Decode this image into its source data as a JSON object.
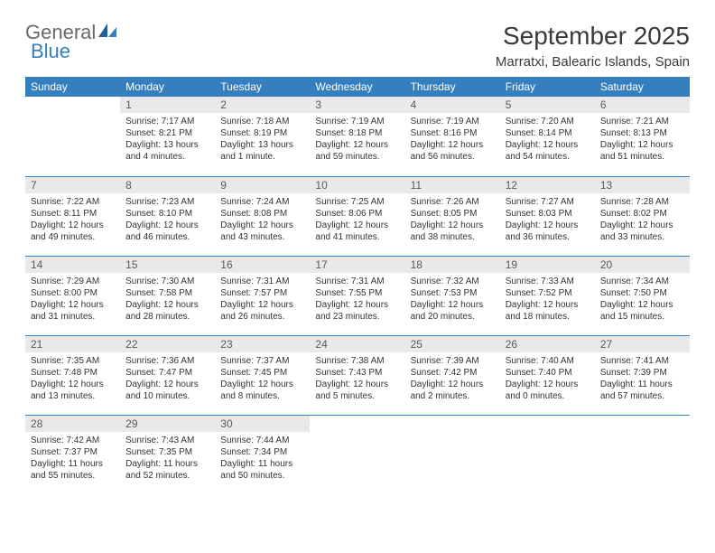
{
  "brand": {
    "part1": "General",
    "part2": "Blue"
  },
  "title": "September 2025",
  "subtitle": "Marratxi, Balearic Islands, Spain",
  "colors": {
    "header_bg": "#367fbf",
    "header_text": "#ffffff",
    "daynum_bg": "#e9e9e9",
    "border": "#367fbf",
    "logo_gray": "#6a6a6a",
    "logo_blue": "#367fbf"
  },
  "weekdays": [
    "Sunday",
    "Monday",
    "Tuesday",
    "Wednesday",
    "Thursday",
    "Friday",
    "Saturday"
  ],
  "weeks": [
    [
      {
        "n": "",
        "sr": "",
        "ss": "",
        "dl": ""
      },
      {
        "n": "1",
        "sr": "Sunrise: 7:17 AM",
        "ss": "Sunset: 8:21 PM",
        "dl": "Daylight: 13 hours and 4 minutes."
      },
      {
        "n": "2",
        "sr": "Sunrise: 7:18 AM",
        "ss": "Sunset: 8:19 PM",
        "dl": "Daylight: 13 hours and 1 minute."
      },
      {
        "n": "3",
        "sr": "Sunrise: 7:19 AM",
        "ss": "Sunset: 8:18 PM",
        "dl": "Daylight: 12 hours and 59 minutes."
      },
      {
        "n": "4",
        "sr": "Sunrise: 7:19 AM",
        "ss": "Sunset: 8:16 PM",
        "dl": "Daylight: 12 hours and 56 minutes."
      },
      {
        "n": "5",
        "sr": "Sunrise: 7:20 AM",
        "ss": "Sunset: 8:14 PM",
        "dl": "Daylight: 12 hours and 54 minutes."
      },
      {
        "n": "6",
        "sr": "Sunrise: 7:21 AM",
        "ss": "Sunset: 8:13 PM",
        "dl": "Daylight: 12 hours and 51 minutes."
      }
    ],
    [
      {
        "n": "7",
        "sr": "Sunrise: 7:22 AM",
        "ss": "Sunset: 8:11 PM",
        "dl": "Daylight: 12 hours and 49 minutes."
      },
      {
        "n": "8",
        "sr": "Sunrise: 7:23 AM",
        "ss": "Sunset: 8:10 PM",
        "dl": "Daylight: 12 hours and 46 minutes."
      },
      {
        "n": "9",
        "sr": "Sunrise: 7:24 AM",
        "ss": "Sunset: 8:08 PM",
        "dl": "Daylight: 12 hours and 43 minutes."
      },
      {
        "n": "10",
        "sr": "Sunrise: 7:25 AM",
        "ss": "Sunset: 8:06 PM",
        "dl": "Daylight: 12 hours and 41 minutes."
      },
      {
        "n": "11",
        "sr": "Sunrise: 7:26 AM",
        "ss": "Sunset: 8:05 PM",
        "dl": "Daylight: 12 hours and 38 minutes."
      },
      {
        "n": "12",
        "sr": "Sunrise: 7:27 AM",
        "ss": "Sunset: 8:03 PM",
        "dl": "Daylight: 12 hours and 36 minutes."
      },
      {
        "n": "13",
        "sr": "Sunrise: 7:28 AM",
        "ss": "Sunset: 8:02 PM",
        "dl": "Daylight: 12 hours and 33 minutes."
      }
    ],
    [
      {
        "n": "14",
        "sr": "Sunrise: 7:29 AM",
        "ss": "Sunset: 8:00 PM",
        "dl": "Daylight: 12 hours and 31 minutes."
      },
      {
        "n": "15",
        "sr": "Sunrise: 7:30 AM",
        "ss": "Sunset: 7:58 PM",
        "dl": "Daylight: 12 hours and 28 minutes."
      },
      {
        "n": "16",
        "sr": "Sunrise: 7:31 AM",
        "ss": "Sunset: 7:57 PM",
        "dl": "Daylight: 12 hours and 26 minutes."
      },
      {
        "n": "17",
        "sr": "Sunrise: 7:31 AM",
        "ss": "Sunset: 7:55 PM",
        "dl": "Daylight: 12 hours and 23 minutes."
      },
      {
        "n": "18",
        "sr": "Sunrise: 7:32 AM",
        "ss": "Sunset: 7:53 PM",
        "dl": "Daylight: 12 hours and 20 minutes."
      },
      {
        "n": "19",
        "sr": "Sunrise: 7:33 AM",
        "ss": "Sunset: 7:52 PM",
        "dl": "Daylight: 12 hours and 18 minutes."
      },
      {
        "n": "20",
        "sr": "Sunrise: 7:34 AM",
        "ss": "Sunset: 7:50 PM",
        "dl": "Daylight: 12 hours and 15 minutes."
      }
    ],
    [
      {
        "n": "21",
        "sr": "Sunrise: 7:35 AM",
        "ss": "Sunset: 7:48 PM",
        "dl": "Daylight: 12 hours and 13 minutes."
      },
      {
        "n": "22",
        "sr": "Sunrise: 7:36 AM",
        "ss": "Sunset: 7:47 PM",
        "dl": "Daylight: 12 hours and 10 minutes."
      },
      {
        "n": "23",
        "sr": "Sunrise: 7:37 AM",
        "ss": "Sunset: 7:45 PM",
        "dl": "Daylight: 12 hours and 8 minutes."
      },
      {
        "n": "24",
        "sr": "Sunrise: 7:38 AM",
        "ss": "Sunset: 7:43 PM",
        "dl": "Daylight: 12 hours and 5 minutes."
      },
      {
        "n": "25",
        "sr": "Sunrise: 7:39 AM",
        "ss": "Sunset: 7:42 PM",
        "dl": "Daylight: 12 hours and 2 minutes."
      },
      {
        "n": "26",
        "sr": "Sunrise: 7:40 AM",
        "ss": "Sunset: 7:40 PM",
        "dl": "Daylight: 12 hours and 0 minutes."
      },
      {
        "n": "27",
        "sr": "Sunrise: 7:41 AM",
        "ss": "Sunset: 7:39 PM",
        "dl": "Daylight: 11 hours and 57 minutes."
      }
    ],
    [
      {
        "n": "28",
        "sr": "Sunrise: 7:42 AM",
        "ss": "Sunset: 7:37 PM",
        "dl": "Daylight: 11 hours and 55 minutes."
      },
      {
        "n": "29",
        "sr": "Sunrise: 7:43 AM",
        "ss": "Sunset: 7:35 PM",
        "dl": "Daylight: 11 hours and 52 minutes."
      },
      {
        "n": "30",
        "sr": "Sunrise: 7:44 AM",
        "ss": "Sunset: 7:34 PM",
        "dl": "Daylight: 11 hours and 50 minutes."
      },
      {
        "n": "",
        "sr": "",
        "ss": "",
        "dl": ""
      },
      {
        "n": "",
        "sr": "",
        "ss": "",
        "dl": ""
      },
      {
        "n": "",
        "sr": "",
        "ss": "",
        "dl": ""
      },
      {
        "n": "",
        "sr": "",
        "ss": "",
        "dl": ""
      }
    ]
  ]
}
